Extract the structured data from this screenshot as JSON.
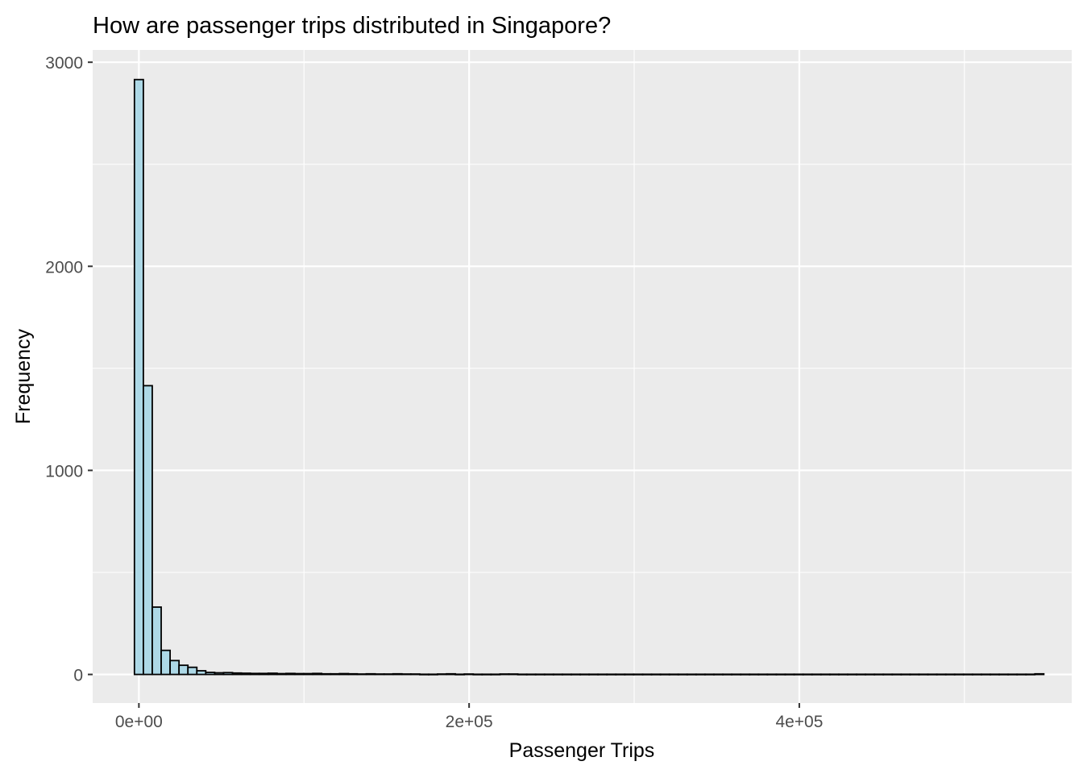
{
  "chart_data": {
    "type": "bar",
    "title": "How are passenger trips distributed in Singapore?",
    "xlabel": "Passenger Trips",
    "ylabel": "Frequency",
    "xlim": [
      -28000,
      565000
    ],
    "ylim": [
      -140,
      3060
    ],
    "x_ticks": [
      {
        "value": 0,
        "label": "0e+00"
      },
      {
        "value": 200000,
        "label": "2e+05"
      },
      {
        "value": 400000,
        "label": "4e+05"
      }
    ],
    "x_minor_ticks": [
      100000,
      300000,
      500000
    ],
    "y_ticks": [
      {
        "value": 0,
        "label": "0"
      },
      {
        "value": 1000,
        "label": "1000"
      },
      {
        "value": 2000,
        "label": "2000"
      },
      {
        "value": 3000,
        "label": "3000"
      }
    ],
    "y_minor_ticks": [
      500,
      1500,
      2500
    ],
    "grid": true,
    "background_color": "#EBEBEB",
    "bar_fill": "#ADD8E6",
    "bar_outline": "#000000",
    "bin_width": 5400,
    "bin_start": -2700,
    "counts": [
      2915,
      1415,
      330,
      118,
      68,
      45,
      35,
      18,
      10,
      8,
      9,
      7,
      6,
      5,
      5,
      6,
      4,
      5,
      4,
      4,
      5,
      3,
      3,
      4,
      3,
      2,
      3,
      2,
      2,
      3,
      2,
      2,
      1,
      1,
      2,
      3,
      1,
      2,
      1,
      1,
      1,
      2,
      2,
      1,
      1,
      1,
      1,
      1,
      1,
      1,
      1,
      1,
      1,
      1,
      1,
      1,
      1,
      1,
      1,
      1,
      1,
      1,
      1,
      1,
      1,
      1,
      1,
      1,
      1,
      1,
      1,
      1,
      1,
      1,
      1,
      1,
      1,
      1,
      1,
      1,
      1,
      1,
      1,
      1,
      1,
      1,
      1,
      1,
      1,
      1,
      1,
      1,
      1,
      1,
      1,
      1,
      1,
      1,
      1,
      1,
      1,
      3
    ]
  }
}
